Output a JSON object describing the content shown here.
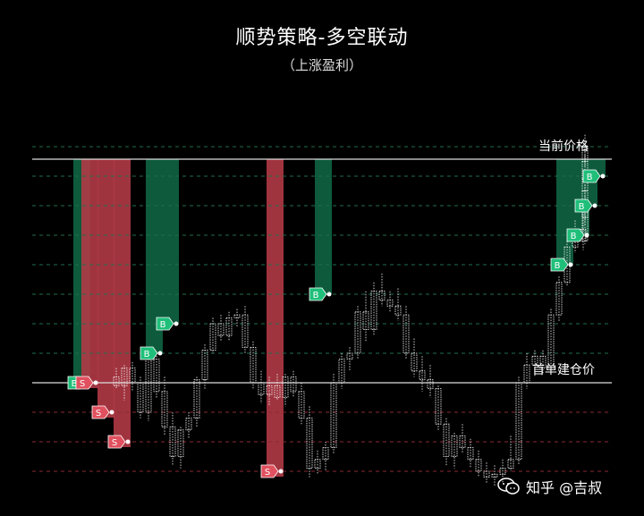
{
  "title": "顺势策略-多空联动",
  "subtitle": "（上涨盈利）",
  "watermark": "知乎 @吉叔",
  "colors": {
    "long_band": "#0e5a3c",
    "short_band": "#b03a46",
    "buy_tag": "#1fbf7a",
    "sell_tag": "#e0505e",
    "grid_up": "#1f6e4a",
    "grid_down": "#8a2a33",
    "candle": "#ffffff"
  },
  "chart_data": {
    "type": "candlestick",
    "annotations": {
      "top_line": "当前价格",
      "base_line": "首单建仓价"
    },
    "markers": {
      "buy": "B",
      "sell": "S"
    },
    "levels": [
      -3,
      -2,
      -1,
      0,
      1,
      2,
      3,
      4,
      5,
      6,
      7,
      8
    ],
    "price_levels_note": "",
    "candles": [
      {
        "o": 0.2,
        "h": 0.5,
        "l": -0.2,
        "c": -0.1
      },
      {
        "o": -0.1,
        "h": 0.6,
        "l": -0.6,
        "c": 0.5
      },
      {
        "o": 0.5,
        "h": 0.7,
        "l": -0.3,
        "c": 0.0
      },
      {
        "o": 0.0,
        "h": 0.2,
        "l": -1.2,
        "c": -1.0
      },
      {
        "o": -1.0,
        "h": 0.9,
        "l": -1.3,
        "c": 0.8
      },
      {
        "o": 0.8,
        "h": 1.0,
        "l": -0.5,
        "c": -0.3
      },
      {
        "o": -0.3,
        "h": 0.2,
        "l": -1.8,
        "c": -1.5
      },
      {
        "o": -1.5,
        "h": -1.0,
        "l": -2.8,
        "c": -2.5
      },
      {
        "o": -2.5,
        "h": -1.5,
        "l": -2.9,
        "c": -1.6
      },
      {
        "o": -1.6,
        "h": -1.0,
        "l": -1.9,
        "c": -1.2
      },
      {
        "o": -1.2,
        "h": 0.2,
        "l": -1.5,
        "c": 0.1
      },
      {
        "o": 0.1,
        "h": 1.3,
        "l": -0.2,
        "c": 1.1
      },
      {
        "o": 1.1,
        "h": 2.2,
        "l": 1.0,
        "c": 2.0
      },
      {
        "o": 2.0,
        "h": 2.3,
        "l": 1.4,
        "c": 1.6
      },
      {
        "o": 1.6,
        "h": 2.4,
        "l": 1.4,
        "c": 2.2
      },
      {
        "o": 2.2,
        "h": 2.5,
        "l": 1.9,
        "c": 2.3
      },
      {
        "o": 2.3,
        "h": 2.6,
        "l": 1.0,
        "c": 1.2
      },
      {
        "o": 1.2,
        "h": 1.4,
        "l": -0.2,
        "c": 0.0
      },
      {
        "o": 0.0,
        "h": 0.4,
        "l": -0.7,
        "c": -0.4
      },
      {
        "o": -0.4,
        "h": 0.2,
        "l": -0.8,
        "c": -0.1
      },
      {
        "o": -0.1,
        "h": 0.3,
        "l": -0.6,
        "c": -0.5
      },
      {
        "o": -0.5,
        "h": 0.3,
        "l": -0.8,
        "c": 0.2
      },
      {
        "o": 0.2,
        "h": 0.4,
        "l": -0.5,
        "c": -0.3
      },
      {
        "o": -0.3,
        "h": 0.0,
        "l": -1.4,
        "c": -1.2
      },
      {
        "o": -1.2,
        "h": -0.8,
        "l": -3.2,
        "c": -2.9
      },
      {
        "o": -2.9,
        "h": -2.3,
        "l": -3.1,
        "c": -2.6
      },
      {
        "o": -2.6,
        "h": -2.0,
        "l": -3.0,
        "c": -2.2
      },
      {
        "o": -2.2,
        "h": 0.3,
        "l": -2.4,
        "c": 0.0
      },
      {
        "o": 0.0,
        "h": 1.0,
        "l": -0.2,
        "c": 0.8
      },
      {
        "o": 0.8,
        "h": 1.2,
        "l": 0.4,
        "c": 1.0
      },
      {
        "o": 1.0,
        "h": 2.6,
        "l": 0.8,
        "c": 2.4
      },
      {
        "o": 2.4,
        "h": 3.1,
        "l": 1.4,
        "c": 1.8
      },
      {
        "o": 1.8,
        "h": 3.4,
        "l": 1.6,
        "c": 3.1
      },
      {
        "o": 3.1,
        "h": 3.7,
        "l": 2.6,
        "c": 2.8
      },
      {
        "o": 2.8,
        "h": 3.1,
        "l": 2.4,
        "c": 2.6
      },
      {
        "o": 2.6,
        "h": 3.2,
        "l": 2.1,
        "c": 2.3
      },
      {
        "o": 2.3,
        "h": 2.6,
        "l": 0.8,
        "c": 1.0
      },
      {
        "o": 1.0,
        "h": 1.5,
        "l": 0.2,
        "c": 0.4
      },
      {
        "o": 0.4,
        "h": 0.9,
        "l": -0.3,
        "c": 0.1
      },
      {
        "o": 0.1,
        "h": 0.6,
        "l": -0.5,
        "c": -0.2
      },
      {
        "o": -0.2,
        "h": -0.1,
        "l": -1.6,
        "c": -1.4
      },
      {
        "o": -1.4,
        "h": -1.2,
        "l": -2.8,
        "c": -2.5
      },
      {
        "o": -2.5,
        "h": -1.7,
        "l": -2.9,
        "c": -1.8
      },
      {
        "o": -1.8,
        "h": -1.4,
        "l": -2.4,
        "c": -2.2
      },
      {
        "o": -2.2,
        "h": -1.9,
        "l": -2.9,
        "c": -2.6
      },
      {
        "o": -2.6,
        "h": -2.3,
        "l": -3.2,
        "c": -3.0
      },
      {
        "o": -3.0,
        "h": -2.7,
        "l": -3.4,
        "c": -3.2
      },
      {
        "o": -3.2,
        "h": -2.8,
        "l": -3.5,
        "c": -3.1
      },
      {
        "o": -3.1,
        "h": -2.6,
        "l": -3.4,
        "c": -2.9
      },
      {
        "o": -2.9,
        "h": -1.8,
        "l": -3.0,
        "c": -2.6
      },
      {
        "o": -2.6,
        "h": 0.2,
        "l": -2.8,
        "c": 0.0
      },
      {
        "o": 0.0,
        "h": 1.0,
        "l": -0.2,
        "c": 0.6
      },
      {
        "o": 0.6,
        "h": 1.1,
        "l": 0.2,
        "c": 0.9
      },
      {
        "o": 0.9,
        "h": 1.1,
        "l": 0.3,
        "c": 0.5
      },
      {
        "o": 0.5,
        "h": 2.5,
        "l": 0.4,
        "c": 2.3
      },
      {
        "o": 2.3,
        "h": 3.6,
        "l": 2.1,
        "c": 3.4
      },
      {
        "o": 3.4,
        "h": 4.8,
        "l": 3.3,
        "c": 4.6
      },
      {
        "o": 4.6,
        "h": 5.5,
        "l": 4.4,
        "c": 5.2
      },
      {
        "o": 5.2,
        "h": 5.8,
        "l": 4.5,
        "c": 4.8
      },
      {
        "o": 4.8,
        "h": 6.1,
        "l": 4.7,
        "c": 5.9
      },
      {
        "o": 5.9,
        "h": 6.3,
        "l": 5.3,
        "c": 5.6
      },
      {
        "o": 5.6,
        "h": 6.7,
        "l": 5.5,
        "c": 6.5
      },
      {
        "o": 6.5,
        "h": 7.0,
        "l": 6.3,
        "c": 6.9
      },
      {
        "o": 6.9,
        "h": 7.7,
        "l": 6.8,
        "c": 7.5
      },
      {
        "o": 7.5,
        "h": 8.2,
        "l": 7.3,
        "c": 8.0
      },
      {
        "o": 8.0,
        "h": 8.4,
        "l": 7.6,
        "c": 7.9
      }
    ],
    "trades": [
      {
        "side": "B",
        "idx": 0,
        "level": 0
      },
      {
        "side": "S",
        "idx": 1,
        "level": 0
      },
      {
        "side": "S",
        "idx": 3,
        "level": -1
      },
      {
        "side": "S",
        "idx": 5,
        "level": -2
      },
      {
        "side": "B",
        "idx": 9,
        "level": 1
      },
      {
        "side": "B",
        "idx": 11,
        "level": 2
      },
      {
        "side": "S",
        "idx": 24,
        "level": -3
      },
      {
        "side": "B",
        "idx": 30,
        "level": 3
      },
      {
        "side": "B",
        "idx": 60,
        "level": 4
      },
      {
        "side": "B",
        "idx": 62,
        "level": 5
      },
      {
        "side": "B",
        "idx": 63,
        "level": 6
      },
      {
        "side": "B",
        "idx": 64,
        "level": 7
      }
    ],
    "bands": [
      {
        "side": "long",
        "from_candle": 0,
        "level": 0
      },
      {
        "side": "short",
        "from_candle": 1,
        "level": 0
      },
      {
        "side": "short",
        "from_candle": 3,
        "level": -1
      },
      {
        "side": "short",
        "from_candle": 5,
        "level": -2
      },
      {
        "side": "long",
        "from_candle": 9,
        "level": 1
      },
      {
        "side": "long",
        "from_candle": 11,
        "level": 2
      },
      {
        "side": "short",
        "from_candle": 24,
        "level": -3
      },
      {
        "side": "long",
        "from_candle": 30,
        "level": 3
      },
      {
        "side": "long",
        "from_candle": 60,
        "level": 4
      },
      {
        "side": "long",
        "from_candle": 62,
        "level": 5
      },
      {
        "side": "long",
        "from_candle": 63,
        "level": 6
      },
      {
        "side": "long",
        "from_candle": 64,
        "level": 7
      }
    ]
  }
}
